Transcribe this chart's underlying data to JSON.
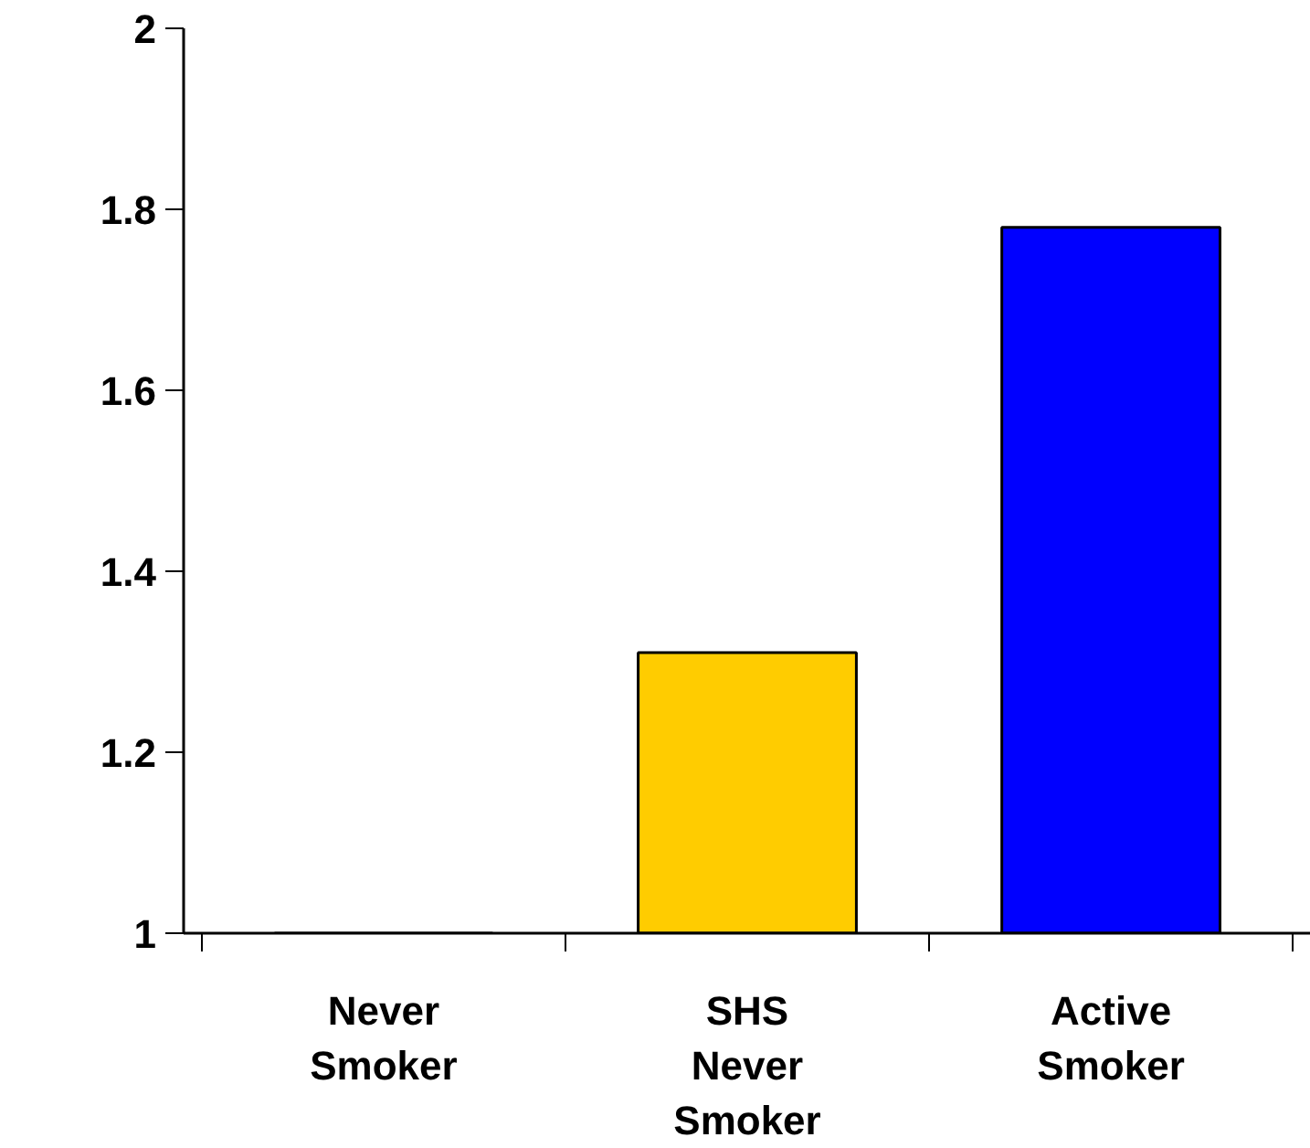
{
  "chart_data": {
    "type": "bar",
    "categories": [
      "Never Smoker",
      "SHS Never Smoker",
      "Active Smoker"
    ],
    "values": [
      1.0,
      1.31,
      1.78
    ],
    "colors": [
      "#ffcc00",
      "#ffcc00",
      "#0000ff"
    ],
    "ylim": [
      1,
      2
    ],
    "yticks": [
      1,
      1.2,
      1.4,
      1.6,
      1.8,
      2
    ],
    "grid": false
  }
}
